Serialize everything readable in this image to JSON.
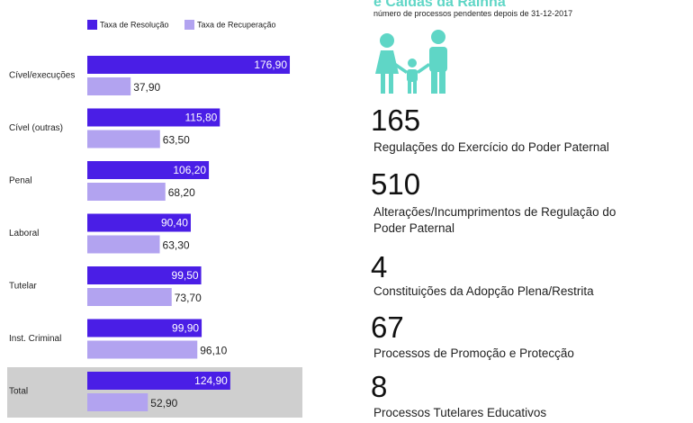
{
  "header": {
    "title": "e Caldas da Rainha",
    "subtitle": "número de processos pendentes depois de 31-12-2017"
  },
  "chart_data": {
    "type": "bar",
    "orientation": "horizontal",
    "categories": [
      "Cível/execuções",
      "Cível (outras)",
      "Penal",
      "Laboral",
      "Tutelar",
      "Inst. Criminal",
      "Total"
    ],
    "series": [
      {
        "name": "Taxa de Resolução",
        "color": "#4a1ee6",
        "values": [
          176.9,
          115.8,
          106.2,
          90.4,
          99.5,
          99.9,
          124.9
        ],
        "value_labels": [
          "176,90",
          "115,80",
          "106,20",
          "90,40",
          "99,50",
          "99,90",
          "124,90"
        ]
      },
      {
        "name": "Taxa de Recuperação",
        "color": "#b2a3f0",
        "values": [
          37.9,
          63.5,
          68.2,
          63.3,
          73.7,
          96.1,
          52.9
        ],
        "value_labels": [
          "37,90",
          "63,50",
          "68,20",
          "63,30",
          "73,70",
          "96,10",
          "52,90"
        ]
      }
    ]
  },
  "stats": [
    {
      "value": 165,
      "label": "Regulações do Exercício do Poder Paternal"
    },
    {
      "value": 510,
      "label": "Alterações/Incumprimentos de Regulação do Poder Paternal"
    },
    {
      "value": 4,
      "label": "Constituições da Adopção Plena/Restrita"
    },
    {
      "value": 67,
      "label": "Processos de Promoção e Protecção"
    },
    {
      "value": 8,
      "label": "Processos Tutelares Educativos"
    }
  ]
}
